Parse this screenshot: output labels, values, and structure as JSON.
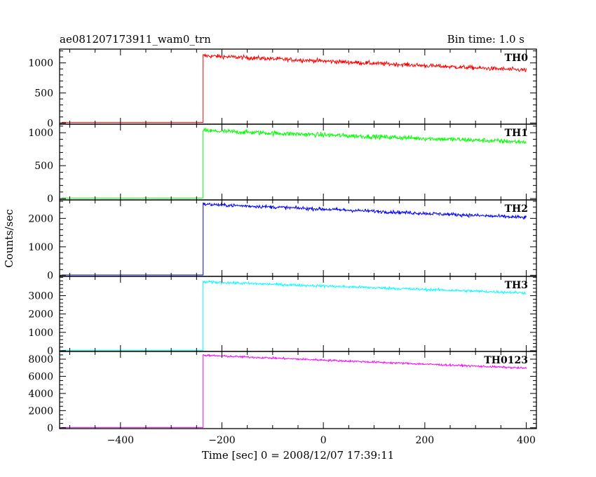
{
  "title_left": "ae081207173911_wam0_trn",
  "title_right": "Bin time: 1.0 s",
  "xlabel": "Time [sec] 0 = 2008/12/07 17:39:11",
  "ylabel": "Counts/sec",
  "chart_data": {
    "type": "line",
    "xlim": [
      -520,
      420
    ],
    "x_ticks": [
      -400,
      -200,
      0,
      200,
      400
    ],
    "x_tick_labels": [
      "−400",
      "−200",
      "0",
      "200",
      "400"
    ],
    "x_minor_step": 50,
    "onset_time": -237,
    "x_end": 400,
    "panels": [
      {
        "name": "TH0",
        "color": "#ff0000",
        "baseline": 10,
        "level_start": 1120,
        "level_end": 880,
        "noise": 35,
        "ylim": [
          -20,
          1230
        ],
        "y_ticks": [
          0,
          500,
          1000
        ],
        "y_minor_step": 100
      },
      {
        "name": "TH1",
        "color": "#00ff00",
        "baseline": 10,
        "level_start": 1030,
        "level_end": 860,
        "noise": 35,
        "ylim": [
          -20,
          1130
        ],
        "y_ticks": [
          0,
          500,
          1000
        ],
        "y_minor_step": 100
      },
      {
        "name": "TH2",
        "color": "#0000ff",
        "baseline": 10,
        "level_start": 2500,
        "level_end": 2030,
        "noise": 60,
        "ylim": [
          -40,
          2650
        ],
        "y_ticks": [
          0,
          1000,
          2000
        ],
        "y_minor_step": 200
      },
      {
        "name": "TH3",
        "color": "#00ffff",
        "baseline": 20,
        "level_start": 3750,
        "level_end": 3150,
        "noise": 70,
        "ylim": [
          -40,
          4050
        ],
        "y_ticks": [
          0,
          1000,
          2000,
          3000
        ],
        "y_minor_step": 200
      },
      {
        "name": "TH0123",
        "color": "#ff00ff",
        "baseline": 30,
        "level_start": 8450,
        "level_end": 6950,
        "noise": 110,
        "ylim": [
          -100,
          8900
        ],
        "y_ticks": [
          0,
          2000,
          4000,
          6000,
          8000
        ],
        "y_minor_step": 500
      }
    ]
  }
}
